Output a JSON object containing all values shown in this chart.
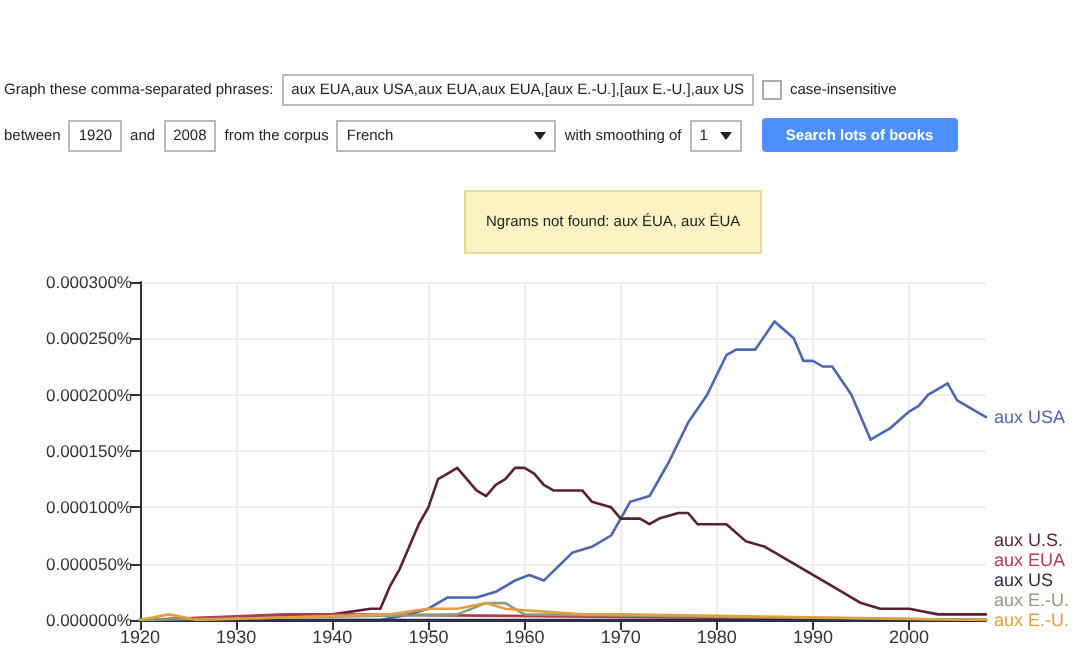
{
  "chart_data": {
    "type": "line",
    "annotations": [
      "Graph these comma-separated phrases:",
      "aux EUA,aux USA,aux EUA,aux EUA,[aux E.-U.],[aux E.-U.],aux US",
      "case-insensitive",
      "between",
      "1920",
      "and",
      "2008",
      "from the corpus",
      "French",
      "with smoothing of",
      "1",
      "Search lots of books",
      "Ngrams not found: aux ÉUA, aux ÉUA"
    ],
    "xlim": [
      1920,
      2008
    ],
    "xticks": [
      1920,
      1930,
      1940,
      1950,
      1960,
      1970,
      1980,
      1990,
      2000
    ],
    "ylim": [
      0,
      0.0003
    ],
    "yticks": [
      {
        "value": 0,
        "label": "0.000000%"
      },
      {
        "value": 5e-05,
        "label": "0.000050%"
      },
      {
        "value": 0.0001,
        "label": "0.000100%"
      },
      {
        "value": 0.00015,
        "label": "0.000150%"
      },
      {
        "value": 0.0002,
        "label": "0.000200%"
      },
      {
        "value": 0.00025,
        "label": "0.000250%"
      },
      {
        "value": 0.0003,
        "label": "0.000300%"
      }
    ],
    "grid": true,
    "marker": "none",
    "line_style": "solid",
    "series": [
      {
        "name": "aux USA",
        "color": "#4a67b0",
        "x": [
          1920,
          1945,
          1948,
          1950,
          1952,
          1955,
          1957,
          1959,
          1960.5,
          1962,
          1965,
          1967,
          1969,
          1971,
          1973,
          1975,
          1977,
          1979,
          1981,
          1982,
          1984,
          1986,
          1988,
          1989,
          1990,
          1991,
          1992,
          1994,
          1995,
          1996,
          1998,
          2000,
          2001,
          2002,
          2003,
          2004,
          2005,
          2008
        ],
        "values": [
          0,
          0,
          5e-06,
          1e-05,
          2e-05,
          2e-05,
          2.5e-05,
          3.5e-05,
          4e-05,
          3.5e-05,
          6e-05,
          6.5e-05,
          7.5e-05,
          0.000105,
          0.00011,
          0.00014,
          0.000175,
          0.0002,
          0.000235,
          0.00024,
          0.00024,
          0.000265,
          0.00025,
          0.00023,
          0.00023,
          0.000225,
          0.000225,
          0.0002,
          0.00018,
          0.00016,
          0.00017,
          0.000185,
          0.00019,
          0.0002,
          0.000205,
          0.00021,
          0.000195,
          0.00018
        ]
      },
      {
        "name": "aux U.S.",
        "color": "#5c1f33",
        "x": [
          1920,
          1940,
          1944,
          1945,
          1946,
          1947,
          1948,
          1949,
          1950,
          1951,
          1952,
          1953,
          1954,
          1955,
          1956,
          1957,
          1958,
          1959,
          1960,
          1961,
          1962,
          1963,
          1965,
          1966,
          1967,
          1969,
          1970,
          1972,
          1973,
          1974,
          1976,
          1977,
          1978,
          1979,
          1980,
          1981,
          1983,
          1985,
          1986,
          1988,
          1990,
          1992,
          1995,
          1997,
          2000,
          2003,
          2008
        ],
        "values": [
          0,
          5e-06,
          1e-05,
          1e-05,
          3e-05,
          4.5e-05,
          6.5e-05,
          8.5e-05,
          0.0001,
          0.000125,
          0.00013,
          0.000135,
          0.000125,
          0.000115,
          0.00011,
          0.00012,
          0.000125,
          0.000135,
          0.000135,
          0.00013,
          0.00012,
          0.000115,
          0.000115,
          0.000115,
          0.000105,
          0.0001,
          9e-05,
          9e-05,
          8.5e-05,
          9e-05,
          9.5e-05,
          9.5e-05,
          8.5e-05,
          8.5e-05,
          8.5e-05,
          8.5e-05,
          7e-05,
          6.5e-05,
          6e-05,
          5e-05,
          4e-05,
          3e-05,
          1.5e-05,
          1e-05,
          1e-05,
          5e-06,
          5e-06
        ]
      },
      {
        "name": "aux EUA",
        "color": "#b03a4e",
        "x": [
          1920,
          1935,
          1940,
          2008
        ],
        "values": [
          0,
          5e-06,
          5e-06,
          0
        ]
      },
      {
        "name": "aux US",
        "color": "#2b2d4a",
        "x": [
          1920,
          2008
        ],
        "values": [
          0,
          0
        ]
      },
      {
        "name": "aux E.-U.",
        "color": "#8a9c80",
        "x": [
          1920,
          1953,
          1956,
          1958,
          1960,
          2008
        ],
        "values": [
          0,
          5e-06,
          1.5e-05,
          1.5e-05,
          5e-06,
          0
        ]
      },
      {
        "name": "aux E.-U.",
        "color": "#e0a040",
        "x": [
          1920,
          1923,
          1926,
          1946,
          1950,
          1953,
          1956,
          1958,
          1966,
          1970,
          2008
        ],
        "values": [
          0,
          5e-06,
          0,
          5e-06,
          1e-05,
          1e-05,
          1.5e-05,
          1e-05,
          5e-06,
          5e-06,
          0
        ]
      }
    ]
  }
}
